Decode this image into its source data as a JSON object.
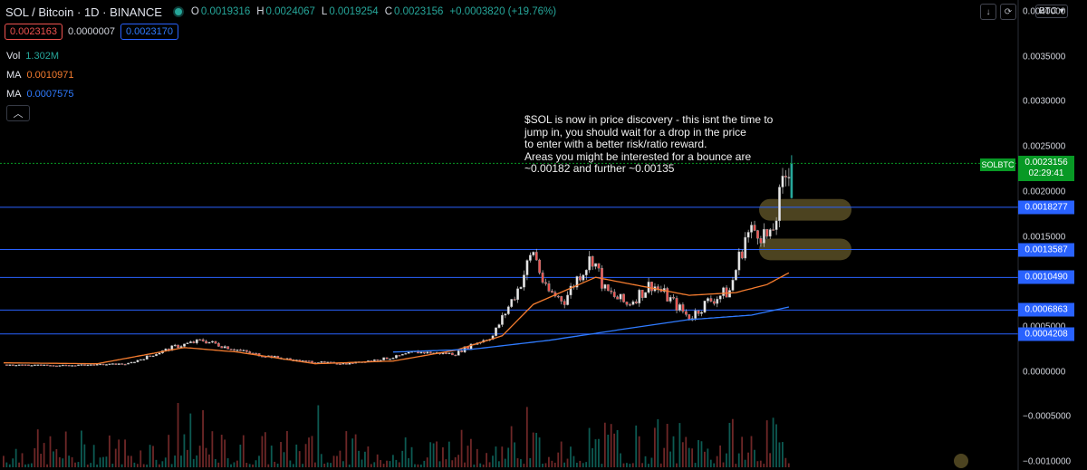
{
  "header": {
    "symbol": "SOL / Bitcoin · 1D · BINANCE",
    "ohlc": [
      {
        "k": "O",
        "v": "0.0019316"
      },
      {
        "k": "H",
        "v": "0.0024067"
      },
      {
        "k": "L",
        "v": "0.0019254"
      },
      {
        "k": "C",
        "v": "0.0023156"
      }
    ],
    "change": "+0.0003820 (+19.76%)",
    "status_color": "#26a69a"
  },
  "quote": {
    "sell": "0.0023163",
    "spread": "0.0000007",
    "buy": "0.0023170"
  },
  "indicators": [
    {
      "name": "Vol",
      "value": "1.302M",
      "color": "#26a69a"
    },
    {
      "name": "MA",
      "value": "0.0010971",
      "color": "#f57c2f"
    },
    {
      "name": "MA",
      "value": "0.0007575",
      "color": "#2f7bff"
    }
  ],
  "collapse_icon": "chevron-up-icon",
  "annotation": "$SOL is now in price discovery - this isnt the time to\njump in, you should wait for a drop in the price\nto enter with a better risk/ratio reward.\nAreas you might be interested for a bounce are\n~0.00182 and further ~0.00135",
  "toolbar": {
    "currency": "BTC ▾",
    "buttons": [
      "↓",
      "⟳"
    ]
  },
  "price_axis": {
    "range": [
      -0.001,
      0.004
    ],
    "ticks": [
      "0.0040000",
      "0.0035000",
      "0.0030000",
      "0.0025000",
      "0.0020000",
      "0.0015000",
      "0.0005000",
      "0.0000000",
      "−0.0005000",
      "−0.0010000"
    ],
    "tick_values": [
      0.004,
      0.0035,
      0.003,
      0.0025,
      0.002,
      0.0015,
      0.0005,
      0,
      -0.0005,
      -0.001
    ]
  },
  "levels": [
    {
      "label": "0.0018277",
      "value": 0.0018277
    },
    {
      "label": "0.0013587",
      "value": 0.0013587
    },
    {
      "label": "0.0010490",
      "value": 0.001049
    },
    {
      "label": "0.0006863",
      "value": 0.0006863
    },
    {
      "label": "0.0004208",
      "value": 0.0004208
    }
  ],
  "current_price": {
    "symbol_tag": "SOLBTC",
    "price": "0.0023156",
    "countdown": "02:29:41",
    "value": 0.0023156,
    "color": "#089925"
  },
  "colors": {
    "up": "#26a69a",
    "down": "#ef5350",
    "level": "#2962ff",
    "ma_fast": "#f57c2f",
    "ma_slow": "#2f7bff",
    "highlight": "#8a7a3a"
  },
  "highlight_zones": [
    {
      "low": 0.00168,
      "high": 0.00192
    },
    {
      "low": 0.00124,
      "high": 0.00148
    }
  ],
  "price_path": [
    [
      0,
      8e-05
    ],
    [
      20,
      7e-05
    ],
    [
      40,
      9e-05
    ],
    [
      55,
      0.00028
    ],
    [
      64,
      0.00035
    ],
    [
      70,
      0.00029
    ],
    [
      80,
      0.0002
    ],
    [
      95,
      0.00012
    ],
    [
      110,
      9e-05
    ],
    [
      125,
      0.00016
    ],
    [
      132,
      0.00022
    ],
    [
      145,
      0.0002
    ],
    [
      150,
      0.0003
    ],
    [
      157,
      0.0004
    ],
    [
      165,
      0.00092
    ],
    [
      170,
      0.00135
    ],
    [
      174,
      0.0009
    ],
    [
      180,
      0.0008
    ],
    [
      185,
      0.0011
    ],
    [
      189,
      0.00128
    ],
    [
      193,
      0.0009
    ],
    [
      200,
      0.00075
    ],
    [
      208,
      0.00098
    ],
    [
      214,
      0.0008
    ],
    [
      220,
      0.0006
    ],
    [
      226,
      0.00078
    ],
    [
      233,
      0.0009
    ],
    [
      238,
      0.0015
    ],
    [
      242,
      0.0016
    ],
    [
      246,
      0.00145
    ],
    [
      249,
      0.0019
    ],
    [
      252,
      0.00232
    ]
  ],
  "ma_fast_path": [
    [
      0,
      0.0001
    ],
    [
      30,
      9e-05
    ],
    [
      58,
      0.00027
    ],
    [
      75,
      0.00022
    ],
    [
      100,
      9e-05
    ],
    [
      125,
      0.00012
    ],
    [
      145,
      0.00024
    ],
    [
      160,
      0.0004
    ],
    [
      170,
      0.00075
    ],
    [
      180,
      0.0009
    ],
    [
      190,
      0.00105
    ],
    [
      205,
      0.00095
    ],
    [
      220,
      0.00085
    ],
    [
      235,
      0.00088
    ],
    [
      245,
      0.00097
    ],
    [
      252,
      0.0011
    ]
  ],
  "ma_slow_path": [
    [
      125,
      0.00022
    ],
    [
      150,
      0.00025
    ],
    [
      175,
      0.00035
    ],
    [
      200,
      0.00048
    ],
    [
      220,
      0.00058
    ],
    [
      240,
      0.00063
    ],
    [
      252,
      0.00072
    ]
  ]
}
